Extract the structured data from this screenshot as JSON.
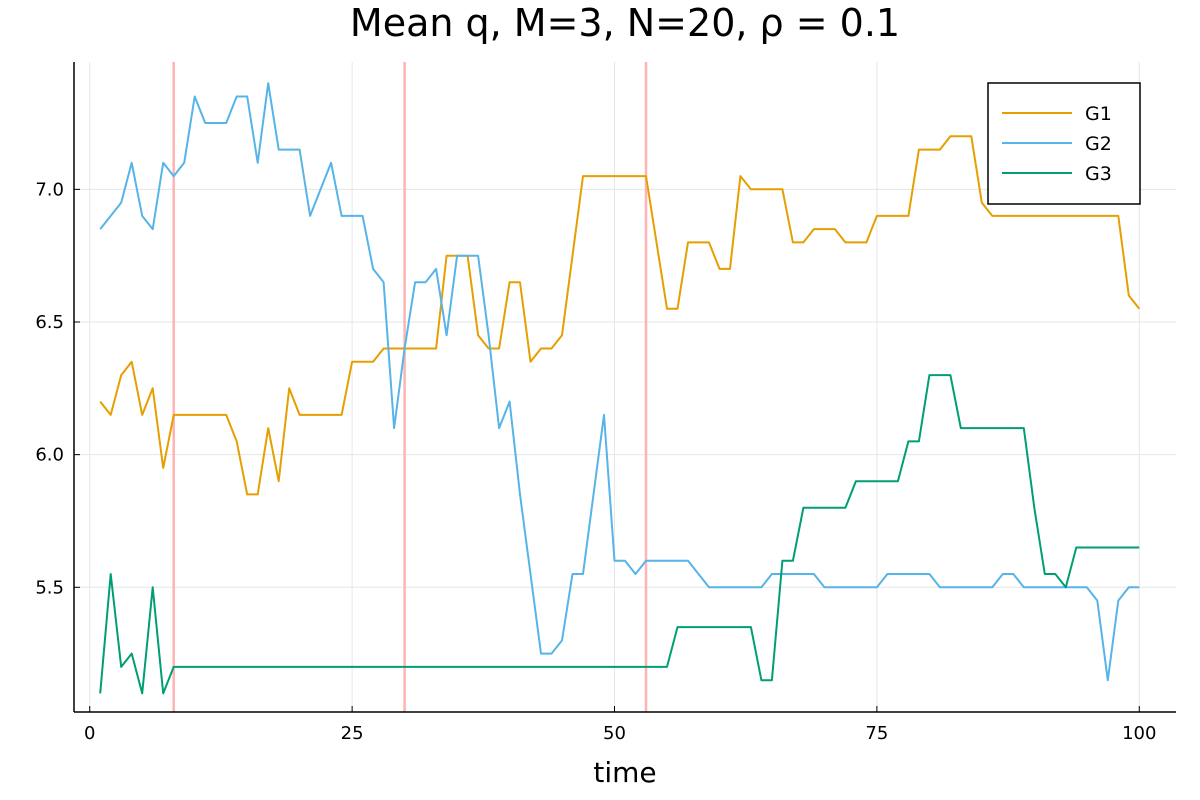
{
  "chart_data": {
    "type": "line",
    "title": "Mean q, M=3, N=20, ρ = 0.1",
    "xlabel": "time",
    "ylabel": "",
    "xlim": [
      -1.5,
      103.5
    ],
    "ylim": [
      5.03,
      7.48
    ],
    "xticks": [
      0,
      25,
      50,
      75,
      100
    ],
    "yticks": [
      5.5,
      6.0,
      6.5,
      7.0
    ],
    "ytick_labels": [
      "5.5",
      "6.0",
      "6.5",
      "7.0"
    ],
    "grid": true,
    "legend_position": "top-right",
    "vlines": {
      "x": [
        8,
        30,
        53
      ],
      "color": "#ffb3b3"
    },
    "x": [
      1,
      2,
      3,
      4,
      5,
      6,
      7,
      8,
      9,
      10,
      11,
      12,
      13,
      14,
      15,
      16,
      17,
      18,
      19,
      20,
      21,
      22,
      23,
      24,
      25,
      26,
      27,
      28,
      29,
      30,
      31,
      32,
      33,
      34,
      35,
      36,
      37,
      38,
      39,
      40,
      41,
      42,
      43,
      44,
      45,
      46,
      47,
      48,
      49,
      50,
      51,
      52,
      53,
      54,
      55,
      56,
      57,
      58,
      59,
      60,
      61,
      62,
      63,
      64,
      65,
      66,
      67,
      68,
      69,
      70,
      71,
      72,
      73,
      74,
      75,
      76,
      77,
      78,
      79,
      80,
      81,
      82,
      83,
      84,
      85,
      86,
      87,
      88,
      89,
      90,
      91,
      92,
      93,
      94,
      95,
      96,
      97,
      98,
      99,
      100
    ],
    "series": [
      {
        "name": "G1",
        "color": "#e69f00",
        "values": [
          6.2,
          6.15,
          6.3,
          6.35,
          6.15,
          6.25,
          5.95,
          6.15,
          6.15,
          6.15,
          6.15,
          6.15,
          6.15,
          6.05,
          5.85,
          5.85,
          6.1,
          5.9,
          6.25,
          6.15,
          6.15,
          6.15,
          6.15,
          6.15,
          6.35,
          6.35,
          6.35,
          6.4,
          6.4,
          6.4,
          6.4,
          6.4,
          6.4,
          6.75,
          6.75,
          6.75,
          6.45,
          6.4,
          6.4,
          6.65,
          6.65,
          6.35,
          6.4,
          6.4,
          6.45,
          6.75,
          7.05,
          7.05,
          7.05,
          7.05,
          7.05,
          7.05,
          7.05,
          6.8,
          6.55,
          6.55,
          6.8,
          6.8,
          6.8,
          6.7,
          6.7,
          7.05,
          7.0,
          7.0,
          7.0,
          7.0,
          6.8,
          6.8,
          6.85,
          6.85,
          6.85,
          6.8,
          6.8,
          6.8,
          6.9,
          6.9,
          6.9,
          6.9,
          7.15,
          7.15,
          7.15,
          7.2,
          7.2,
          7.2,
          6.95,
          6.9,
          6.9,
          6.9,
          6.9,
          6.9,
          6.9,
          6.9,
          6.9,
          6.9,
          6.9,
          6.9,
          6.9,
          6.9,
          6.6,
          6.55
        ]
      },
      {
        "name": "G2",
        "color": "#56b4e9",
        "values": [
          6.85,
          6.9,
          6.95,
          7.1,
          6.9,
          6.85,
          7.1,
          7.05,
          7.1,
          7.35,
          7.25,
          7.25,
          7.25,
          7.35,
          7.35,
          7.1,
          7.4,
          7.15,
          7.15,
          7.15,
          6.9,
          7.0,
          7.1,
          6.9,
          6.9,
          6.9,
          6.7,
          6.65,
          6.1,
          6.4,
          6.65,
          6.65,
          6.7,
          6.45,
          6.75,
          6.75,
          6.75,
          6.45,
          6.1,
          6.2,
          5.85,
          5.55,
          5.25,
          5.25,
          5.3,
          5.55,
          5.55,
          5.85,
          6.15,
          5.6,
          5.6,
          5.55,
          5.6,
          5.6,
          5.6,
          5.6,
          5.6,
          5.55,
          5.5,
          5.5,
          5.5,
          5.5,
          5.5,
          5.5,
          5.55,
          5.55,
          5.55,
          5.55,
          5.55,
          5.5,
          5.5,
          5.5,
          5.5,
          5.5,
          5.5,
          5.55,
          5.55,
          5.55,
          5.55,
          5.55,
          5.5,
          5.5,
          5.5,
          5.5,
          5.5,
          5.5,
          5.55,
          5.55,
          5.5,
          5.5,
          5.5,
          5.5,
          5.5,
          5.5,
          5.5,
          5.45,
          5.15,
          5.45,
          5.5,
          5.5
        ]
      },
      {
        "name": "G3",
        "color": "#009e73",
        "values": [
          5.1,
          5.55,
          5.2,
          5.25,
          5.1,
          5.5,
          5.1,
          5.2,
          5.2,
          5.2,
          5.2,
          5.2,
          5.2,
          5.2,
          5.2,
          5.2,
          5.2,
          5.2,
          5.2,
          5.2,
          5.2,
          5.2,
          5.2,
          5.2,
          5.2,
          5.2,
          5.2,
          5.2,
          5.2,
          5.2,
          5.2,
          5.2,
          5.2,
          5.2,
          5.2,
          5.2,
          5.2,
          5.2,
          5.2,
          5.2,
          5.2,
          5.2,
          5.2,
          5.2,
          5.2,
          5.2,
          5.2,
          5.2,
          5.2,
          5.2,
          5.2,
          5.2,
          5.2,
          5.2,
          5.2,
          5.35,
          5.35,
          5.35,
          5.35,
          5.35,
          5.35,
          5.35,
          5.35,
          5.15,
          5.15,
          5.6,
          5.6,
          5.8,
          5.8,
          5.8,
          5.8,
          5.8,
          5.9,
          5.9,
          5.9,
          5.9,
          5.9,
          6.05,
          6.05,
          6.3,
          6.3,
          6.3,
          6.1,
          6.1,
          6.1,
          6.1,
          6.1,
          6.1,
          6.1,
          5.8,
          5.55,
          5.55,
          5.5,
          5.65,
          5.65,
          5.65,
          5.65,
          5.65,
          5.65,
          5.65
        ]
      }
    ]
  }
}
